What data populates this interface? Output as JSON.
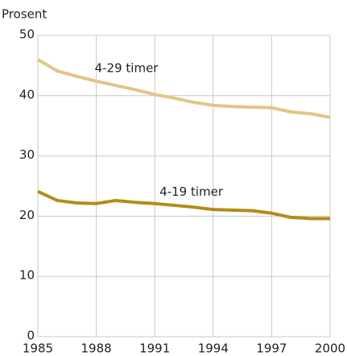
{
  "chart_data": {
    "type": "line",
    "y_label": "Prosent",
    "x": [
      1985,
      1986,
      1987,
      1988,
      1989,
      1990,
      1991,
      1992,
      1993,
      1994,
      1995,
      1996,
      1997,
      1998,
      1999,
      2000
    ],
    "series": [
      {
        "name": "4-29 timer",
        "color": "#e2c585",
        "values": [
          46.0,
          44.1,
          43.2,
          42.4,
          41.7,
          41.0,
          40.2,
          39.6,
          38.9,
          38.4,
          38.2,
          38.1,
          38.0,
          37.3,
          37.0,
          36.4
        ]
      },
      {
        "name": "4-19 timer",
        "color": "#b38c17",
        "values": [
          24.1,
          22.6,
          22.2,
          22.1,
          22.6,
          22.3,
          22.1,
          21.8,
          21.5,
          21.1,
          21.0,
          20.9,
          20.5,
          19.8,
          19.6,
          19.6
        ]
      }
    ],
    "xlim": [
      1985,
      2000
    ],
    "xticks": [
      1985,
      1988,
      1991,
      1994,
      1997,
      2000
    ],
    "ylim": [
      0,
      50
    ],
    "yticks": [
      0,
      10,
      20,
      30,
      40,
      50
    ],
    "grid": true
  }
}
